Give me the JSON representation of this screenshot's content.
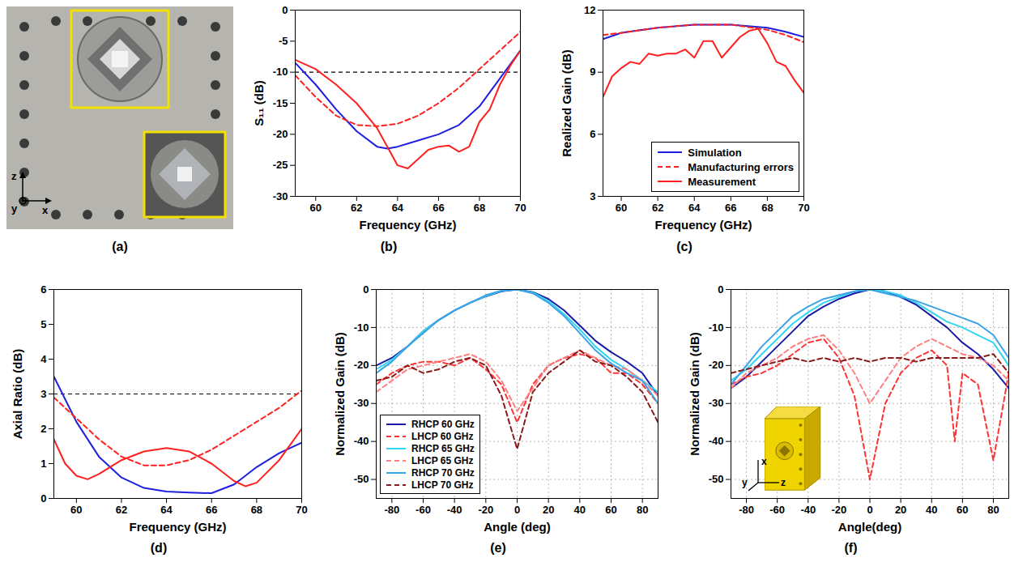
{
  "photo": {
    "caption": "(a)",
    "axis_labels": [
      "z",
      "y",
      "x"
    ]
  },
  "chart_data": [
    {
      "type": "line",
      "caption": "(b)",
      "xlabel": "Frequency (GHz)",
      "ylabel": "S₁₁ (dB)",
      "xlim": [
        59,
        70
      ],
      "xticks": [
        60,
        62,
        64,
        66,
        68,
        70
      ],
      "ylim": [
        -30,
        0
      ],
      "yticks": [
        -30,
        -25,
        -20,
        -15,
        -10,
        -5,
        0
      ],
      "grid": false,
      "hline": -10,
      "series": [
        {
          "name": "Simulation",
          "color": "#1f1fe0",
          "line_style": "solid",
          "x": [
            59,
            60,
            61,
            62,
            63,
            63.5,
            64,
            65,
            66,
            67,
            68,
            69,
            70
          ],
          "values": [
            -8.5,
            -12,
            -16,
            -19.5,
            -22,
            -22.3,
            -22,
            -21,
            -20,
            -18.5,
            -15.5,
            -11,
            -6.5
          ]
        },
        {
          "name": "Manufacturing errors",
          "color": "#ff2020",
          "line_style": "dashed",
          "x": [
            59,
            60,
            61,
            62,
            63,
            64,
            65,
            66,
            67,
            68,
            69,
            70
          ],
          "values": [
            -10.5,
            -14,
            -17,
            -18.5,
            -18.7,
            -18.3,
            -17,
            -15,
            -12.5,
            -9.5,
            -6.5,
            -3.5
          ]
        },
        {
          "name": "Measurement",
          "color": "#ff2020",
          "line_style": "solid",
          "x": [
            59,
            60,
            61,
            62,
            63,
            63.5,
            64,
            64.5,
            65,
            65.5,
            66,
            66.5,
            67,
            67.5,
            68,
            68.5,
            69,
            69.5,
            70
          ],
          "values": [
            -8,
            -9.5,
            -12,
            -15,
            -19,
            -22,
            -25,
            -25.5,
            -24,
            -22.5,
            -22,
            -21.8,
            -22.8,
            -22,
            -18,
            -16,
            -12,
            -9,
            -6.5
          ]
        }
      ]
    },
    {
      "type": "line",
      "caption": "(c)",
      "xlabel": "Frequency (GHz)",
      "ylabel": "Realized Gain (dB)",
      "xlim": [
        59,
        70
      ],
      "xticks": [
        60,
        62,
        64,
        66,
        68,
        70
      ],
      "ylim": [
        3,
        12
      ],
      "yticks": [
        3,
        6,
        9,
        12
      ],
      "grid": false,
      "legend": "bottom-right",
      "series": [
        {
          "name": "Simulation",
          "color": "#1f1fe0",
          "line_style": "solid",
          "x": [
            59,
            60,
            62,
            64,
            66,
            68,
            69,
            70
          ],
          "values": [
            10.6,
            10.9,
            11.15,
            11.3,
            11.3,
            11.15,
            10.95,
            10.7
          ]
        },
        {
          "name": "Manufacturing errors",
          "color": "#ff2020",
          "line_style": "dashed",
          "x": [
            59,
            60,
            62,
            64,
            66,
            68,
            69,
            70
          ],
          "values": [
            10.8,
            10.9,
            11.15,
            11.3,
            11.3,
            11.05,
            10.8,
            10.45
          ]
        },
        {
          "name": "Measurement",
          "color": "#ff2020",
          "line_style": "solid",
          "x": [
            59,
            59.5,
            60,
            60.5,
            61,
            61.5,
            62,
            62.5,
            63,
            63.5,
            64,
            64.5,
            65,
            65.5,
            66,
            66.5,
            67,
            67.5,
            68,
            68.5,
            69,
            69.5,
            70
          ],
          "values": [
            7.8,
            8.8,
            9.2,
            9.5,
            9.4,
            9.9,
            9.8,
            9.9,
            9.9,
            10.1,
            9.7,
            10.5,
            10.5,
            9.7,
            10.2,
            10.7,
            11.0,
            11.1,
            10.4,
            9.5,
            9.3,
            8.6,
            8.0
          ]
        }
      ]
    },
    {
      "type": "line",
      "caption": "(d)",
      "xlabel": "Frequency (GHz)",
      "ylabel": "Axial Ratio (dB)",
      "xlim": [
        59,
        70
      ],
      "xticks": [
        60,
        62,
        64,
        66,
        68,
        70
      ],
      "ylim": [
        0,
        6
      ],
      "yticks": [
        0,
        1,
        2,
        3,
        4,
        5,
        6
      ],
      "grid": false,
      "hline": 3,
      "series": [
        {
          "name": "Simulation",
          "color": "#1f1fe0",
          "line_style": "solid",
          "x": [
            59,
            60,
            61,
            62,
            63,
            64,
            65,
            66,
            67,
            68,
            69,
            70
          ],
          "values": [
            3.5,
            2.2,
            1.2,
            0.6,
            0.3,
            0.2,
            0.17,
            0.15,
            0.4,
            0.9,
            1.3,
            1.6
          ]
        },
        {
          "name": "Manufacturing errors",
          "color": "#ff2020",
          "line_style": "dashed",
          "x": [
            59,
            60,
            61,
            62,
            63,
            64,
            65,
            66,
            67,
            68,
            69,
            70
          ],
          "values": [
            2.9,
            2.3,
            1.7,
            1.2,
            0.95,
            0.95,
            1.1,
            1.4,
            1.8,
            2.2,
            2.6,
            3.1
          ]
        },
        {
          "name": "Measurement",
          "color": "#ff2020",
          "line_style": "solid",
          "x": [
            59,
            59.5,
            60,
            60.5,
            61,
            62,
            63,
            64,
            65,
            66,
            67,
            67.5,
            68,
            69,
            70
          ],
          "values": [
            1.7,
            1.0,
            0.65,
            0.55,
            0.7,
            1.1,
            1.35,
            1.45,
            1.35,
            1.0,
            0.5,
            0.35,
            0.45,
            1.1,
            2.0
          ]
        }
      ]
    },
    {
      "type": "line",
      "caption": "(e)",
      "xlabel": "Angle (deg)",
      "ylabel": "Normalized Gain (dB)",
      "xlim": [
        -90,
        90
      ],
      "xticks": [
        -80,
        -60,
        -40,
        -20,
        0,
        20,
        40,
        60,
        80
      ],
      "ylim": [
        -55,
        0
      ],
      "yticks": [
        -50,
        -40,
        -30,
        -20,
        -10,
        0
      ],
      "grid": true,
      "legend": "bottom-left",
      "series": [
        {
          "name": "RHCP 60 GHz",
          "color": "#1a1aa6",
          "line_style": "solid",
          "x": [
            -90,
            -80,
            -70,
            -60,
            -50,
            -40,
            -30,
            -20,
            -10,
            0,
            10,
            20,
            30,
            40,
            50,
            60,
            70,
            80,
            90
          ],
          "values": [
            -20,
            -18,
            -15,
            -11,
            -8,
            -5.5,
            -3.5,
            -1.8,
            -0.5,
            0,
            -0.7,
            -2.5,
            -5.5,
            -9.5,
            -13.5,
            -16.5,
            -19,
            -22,
            -28
          ]
        },
        {
          "name": "LHCP 60 GHz",
          "color": "#ff3333",
          "line_style": "dashed",
          "x": [
            -90,
            -80,
            -70,
            -60,
            -50,
            -40,
            -30,
            -20,
            -10,
            0,
            10,
            20,
            30,
            40,
            50,
            60,
            70,
            80,
            90
          ],
          "values": [
            -25,
            -22,
            -20,
            -19,
            -19,
            -20,
            -18,
            -21,
            -25,
            -35,
            -25,
            -20,
            -18,
            -17,
            -18,
            -22,
            -22,
            -25,
            -30
          ]
        },
        {
          "name": "RHCP 65 GHz",
          "color": "#33d6f0",
          "line_style": "solid",
          "x": [
            -90,
            -80,
            -70,
            -60,
            -50,
            -40,
            -30,
            -20,
            -10,
            0,
            10,
            20,
            30,
            40,
            50,
            60,
            70,
            80,
            90
          ],
          "values": [
            -21,
            -18.5,
            -15,
            -11,
            -8,
            -5.5,
            -3.5,
            -1.7,
            -0.4,
            0,
            -0.8,
            -3,
            -6.5,
            -10.5,
            -15,
            -18.5,
            -21,
            -24,
            -27
          ]
        },
        {
          "name": "LHCP 65 GHz",
          "color": "#ff8080",
          "line_style": "dashed",
          "x": [
            -90,
            -80,
            -70,
            -60,
            -50,
            -40,
            -30,
            -20,
            -10,
            0,
            10,
            20,
            30,
            40,
            50,
            60,
            70,
            80,
            90
          ],
          "values": [
            -27,
            -24,
            -21,
            -20,
            -19,
            -18,
            -17,
            -19,
            -24,
            -32,
            -26,
            -20,
            -18,
            -16,
            -18,
            -20,
            -21,
            -24,
            -28
          ]
        },
        {
          "name": "RHCP 70 GHz",
          "color": "#3aa3e8",
          "line_style": "solid",
          "x": [
            -90,
            -80,
            -70,
            -60,
            -50,
            -40,
            -30,
            -20,
            -10,
            0,
            10,
            20,
            30,
            40,
            50,
            60,
            70,
            80,
            90
          ],
          "values": [
            -22,
            -19,
            -15,
            -11.5,
            -8,
            -5.5,
            -3.5,
            -1.5,
            -0.3,
            0,
            -1,
            -3.5,
            -7,
            -11.5,
            -16,
            -19.5,
            -22,
            -24,
            -30
          ]
        },
        {
          "name": "LHCP 70 GHz",
          "color": "#8b1a1a",
          "line_style": "dashed",
          "x": [
            -90,
            -80,
            -70,
            -60,
            -50,
            -40,
            -30,
            -20,
            -10,
            0,
            10,
            20,
            30,
            40,
            50,
            60,
            70,
            80,
            90
          ],
          "values": [
            -24,
            -23,
            -20,
            -22,
            -21,
            -19,
            -18,
            -20,
            -28,
            -42,
            -27,
            -22,
            -19,
            -16,
            -19,
            -20,
            -23,
            -27,
            -35
          ]
        }
      ]
    },
    {
      "type": "line",
      "caption": "(f)",
      "xlabel": "Angle(deg)",
      "ylabel": "Normalized Gain (dB)",
      "xlim": [
        -90,
        90
      ],
      "xticks": [
        -80,
        -60,
        -40,
        -20,
        0,
        20,
        40,
        60,
        80
      ],
      "ylim": [
        -55,
        0
      ],
      "yticks": [
        -50,
        -40,
        -30,
        -20,
        -10,
        0
      ],
      "grid": true,
      "inset_axis_labels": [
        "x",
        "y",
        "z"
      ],
      "series": [
        {
          "name": "RHCP 60 GHz",
          "color": "#1a1aa6",
          "line_style": "solid",
          "x": [
            -90,
            -80,
            -70,
            -60,
            -50,
            -40,
            -30,
            -20,
            -10,
            0,
            10,
            20,
            30,
            40,
            50,
            60,
            70,
            80,
            90
          ],
          "values": [
            -26,
            -23,
            -19,
            -15,
            -11,
            -7,
            -4.5,
            -2.5,
            -1,
            0,
            -0.5,
            -2,
            -4,
            -7,
            -10,
            -14,
            -17,
            -21,
            -26
          ]
        },
        {
          "name": "LHCP 60 GHz",
          "color": "#ff3333",
          "line_style": "dashed",
          "x": [
            -90,
            -80,
            -70,
            -60,
            -50,
            -40,
            -30,
            -20,
            -10,
            0,
            10,
            20,
            30,
            40,
            50,
            55,
            60,
            70,
            80,
            90
          ],
          "values": [
            -25,
            -23,
            -22,
            -20,
            -17,
            -14,
            -13,
            -18,
            -28,
            -50,
            -30,
            -22,
            -18,
            -16,
            -20,
            -40,
            -22,
            -25,
            -45,
            -22
          ]
        },
        {
          "name": "RHCP 65 GHz",
          "color": "#33d6f0",
          "line_style": "solid",
          "x": [
            -90,
            -80,
            -70,
            -60,
            -50,
            -40,
            -30,
            -20,
            -10,
            0,
            10,
            20,
            30,
            40,
            50,
            60,
            70,
            80,
            90
          ],
          "values": [
            -24,
            -21,
            -17,
            -13,
            -9,
            -6,
            -3.5,
            -2,
            -0.5,
            0,
            -0.5,
            -1.5,
            -3.5,
            -6,
            -8.5,
            -10,
            -12,
            -14,
            -20
          ]
        },
        {
          "name": "LHCP 65 GHz",
          "color": "#ff8080",
          "line_style": "dashed",
          "x": [
            -90,
            -80,
            -70,
            -60,
            -50,
            -40,
            -30,
            -20,
            -10,
            0,
            10,
            20,
            30,
            40,
            50,
            60,
            70,
            80,
            90
          ],
          "values": [
            -26,
            -22,
            -20,
            -18,
            -15,
            -13,
            -12,
            -16,
            -22,
            -30,
            -24,
            -18,
            -15,
            -13,
            -15,
            -17,
            -18,
            -20,
            -24
          ]
        },
        {
          "name": "RHCP 70 GHz",
          "color": "#3aa3e8",
          "line_style": "solid",
          "x": [
            -90,
            -80,
            -70,
            -60,
            -50,
            -40,
            -30,
            -20,
            -10,
            0,
            10,
            20,
            30,
            40,
            50,
            60,
            70,
            80,
            90
          ],
          "values": [
            -25,
            -20,
            -15,
            -11,
            -7,
            -4.5,
            -2.5,
            -1.5,
            -0.5,
            0,
            -1,
            -2,
            -3,
            -4.5,
            -6,
            -7.5,
            -9,
            -12,
            -18
          ]
        },
        {
          "name": "LHCP 70 GHz",
          "color": "#8b1a1a",
          "line_style": "dashed",
          "x": [
            -90,
            -80,
            -70,
            -60,
            -50,
            -40,
            -30,
            -20,
            -10,
            0,
            10,
            20,
            30,
            40,
            50,
            60,
            70,
            80,
            90
          ],
          "values": [
            -22,
            -21,
            -20,
            -19,
            -18,
            -19,
            -18,
            -19,
            -18,
            -19,
            -18,
            -18,
            -19,
            -18,
            -18,
            -18,
            -18,
            -17,
            -22
          ]
        }
      ]
    }
  ]
}
